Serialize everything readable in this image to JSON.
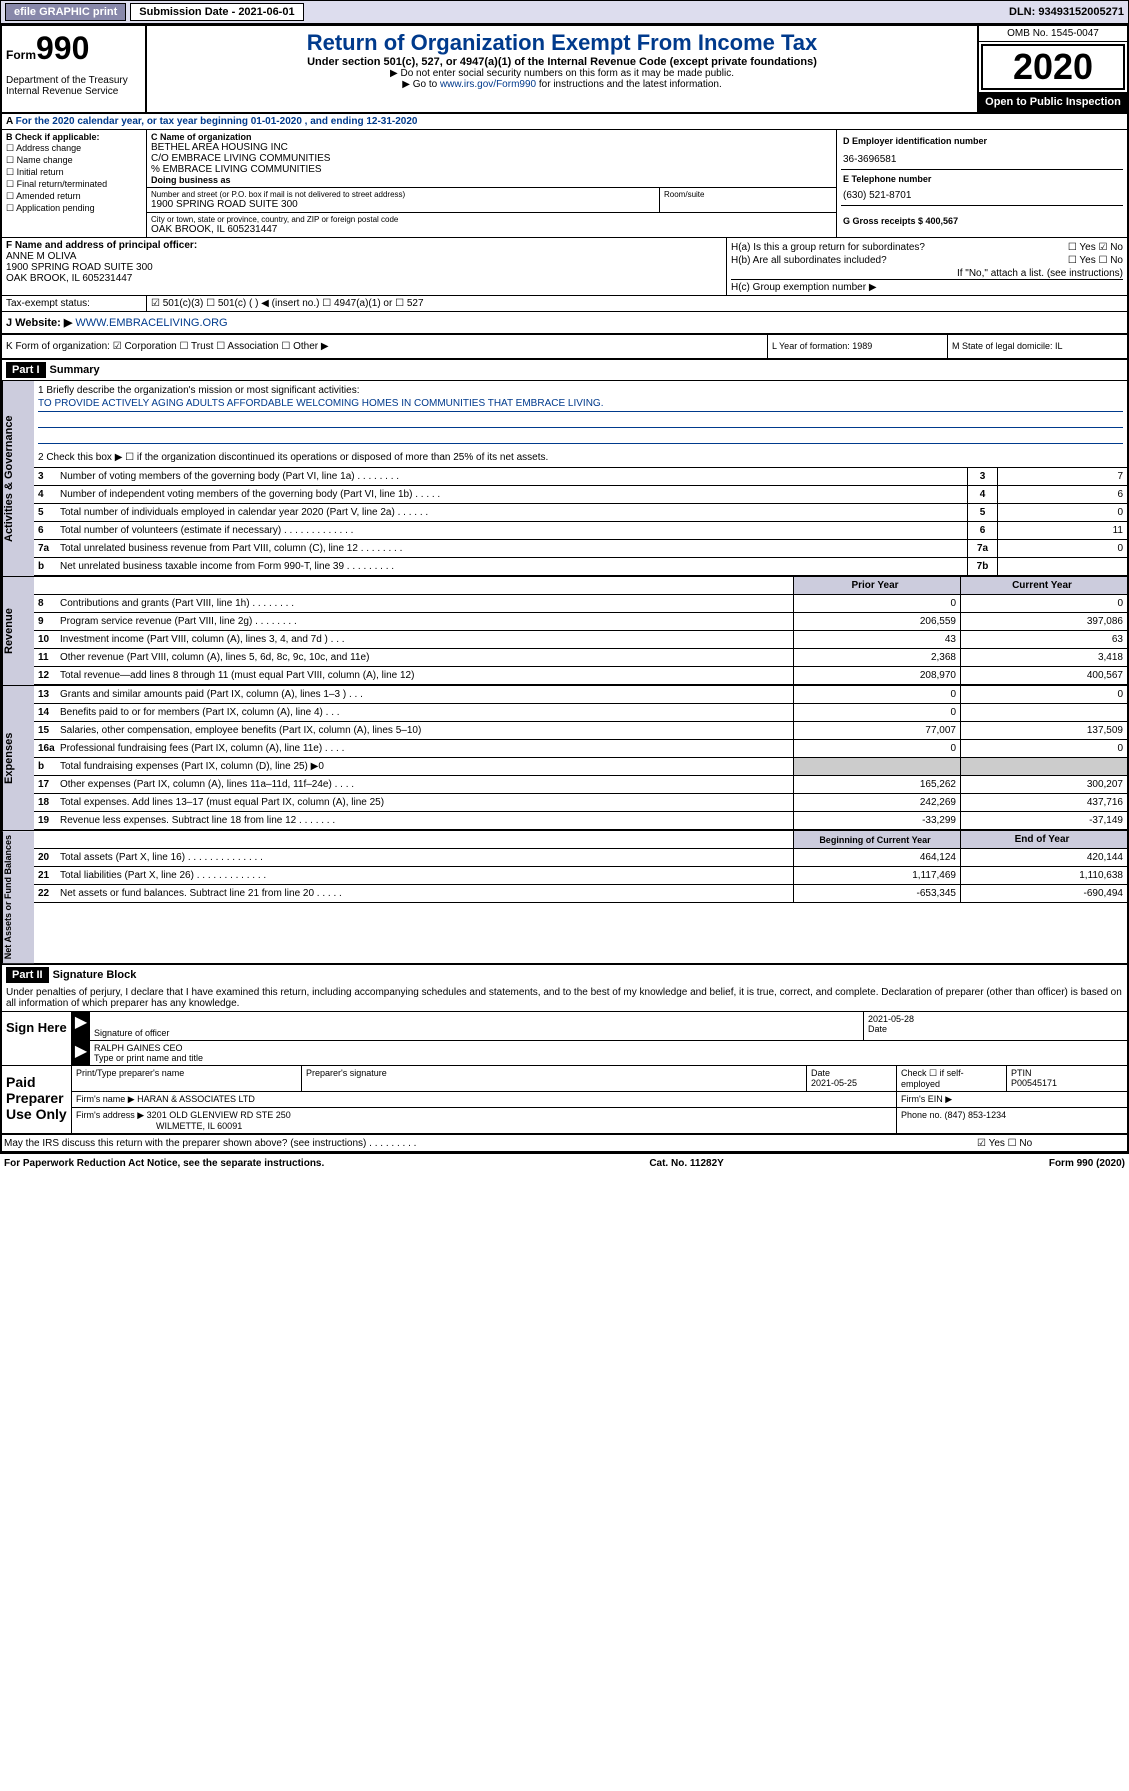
{
  "topbar": {
    "efile": "efile GRAPHIC print",
    "sub_label": "Submission Date - 2021-06-01",
    "dln": "DLN: 93493152005271"
  },
  "header": {
    "form_prefix": "Form",
    "form_num": "990",
    "dept": "Department of the Treasury\nInternal Revenue Service",
    "title": "Return of Organization Exempt From Income Tax",
    "subtitle": "Under section 501(c), 527, or 4947(a)(1) of the Internal Revenue Code (except private foundations)",
    "note1": "▶ Do not enter social security numbers on this form as it may be made public.",
    "note2_pre": "▶ Go to ",
    "note2_link": "www.irs.gov/Form990",
    "note2_post": " for instructions and the latest information.",
    "omb": "OMB No. 1545-0047",
    "year": "2020",
    "inspection": "Open to Public Inspection"
  },
  "row_a": {
    "text": "For the 2020 calendar year, or tax year beginning 01-01-2020   , and ending 12-31-2020"
  },
  "section_b": {
    "label": "B Check if applicable:",
    "options": [
      "☐ Address change",
      "☐ Name change",
      "☐ Initial return",
      "☐ Final return/terminated",
      "☐ Amended return",
      "☐ Application pending"
    ]
  },
  "section_c": {
    "name_label": "C Name of organization",
    "name1": "BETHEL AREA HOUSING INC",
    "name2": "C/O EMBRACE LIVING COMMUNITIES",
    "name3": "% EMBRACE LIVING COMMUNITIES",
    "dba_label": "Doing business as",
    "addr_label": "Number and street (or P.O. box if mail is not delivered to street address)",
    "addr": "1900 SPRING ROAD SUITE 300",
    "room_label": "Room/suite",
    "city_label": "City or town, state or province, country, and ZIP or foreign postal code",
    "city": "OAK BROOK, IL  605231447"
  },
  "section_d": {
    "ein_label": "D Employer identification number",
    "ein": "36-3696581",
    "phone_label": "E Telephone number",
    "phone": "(630) 521-8701",
    "gross_label": "G Gross receipts $ 400,567"
  },
  "section_f": {
    "label": "F  Name and address of principal officer:",
    "name": "ANNE M OLIVA",
    "addr1": "1900 SPRING ROAD SUITE 300",
    "addr2": "OAK BROOK, IL  605231447"
  },
  "section_h": {
    "ha_label": "H(a)  Is this a group return for subordinates?",
    "ha_val": "☐ Yes  ☑ No",
    "hb_label": "H(b)  Are all subordinates included?",
    "hb_val": "☐ Yes  ☐ No",
    "hb_note": "If \"No,\" attach a list. (see instructions)",
    "hc_label": "H(c)  Group exemption number ▶"
  },
  "row_i": {
    "label": "Tax-exempt status:",
    "opts": "☑ 501(c)(3)    ☐ 501(c) (  ) ◀ (insert no.)    ☐ 4947(a)(1) or  ☐ 527"
  },
  "row_j": {
    "label": "J   Website: ▶",
    "val": "WWW.EMBRACELIVING.ORG"
  },
  "row_k": {
    "label": "K Form of organization:  ☑ Corporation  ☐ Trust  ☐ Association  ☐ Other ▶",
    "l": "L Year of formation: 1989",
    "m": "M State of legal domicile: IL"
  },
  "part1": {
    "hdr": "Part I",
    "title": "Summary",
    "mission_label": "1   Briefly describe the organization's mission or most significant activities:",
    "mission": "TO PROVIDE ACTIVELY AGING ADULTS AFFORDABLE WELCOMING HOMES IN COMMUNITIES THAT EMBRACE LIVING.",
    "line2": "2    Check this box ▶ ☐  if the organization discontinued its operations or disposed of more than 25% of its net assets."
  },
  "governance": {
    "side": "Activities & Governance",
    "rows": [
      {
        "n": "3",
        "d": "Number of voting members of the governing body (Part VI, line 1a)  .  .  .  .  .  .  .  .",
        "b": "3",
        "v": "7"
      },
      {
        "n": "4",
        "d": "Number of independent voting members of the governing body (Part VI, line 1b)  .  .  .  .  .",
        "b": "4",
        "v": "6"
      },
      {
        "n": "5",
        "d": "Total number of individuals employed in calendar year 2020 (Part V, line 2a)  .  .  .  .  .  .",
        "b": "5",
        "v": "0"
      },
      {
        "n": "6",
        "d": "Total number of volunteers (estimate if necessary)  .  .  .  .  .  .  .  .  .  .  .  .  .",
        "b": "6",
        "v": "11"
      },
      {
        "n": "7a",
        "d": "Total unrelated business revenue from Part VIII, column (C), line 12   .  .  .  .  .  .  .  .",
        "b": "7a",
        "v": "0"
      },
      {
        "n": "b",
        "d": "Net unrelated business taxable income from Form 990-T, line 39  .  .  .  .  .  .  .  .  .",
        "b": "7b",
        "v": ""
      }
    ]
  },
  "revenue": {
    "side": "Revenue",
    "hdr_prior": "Prior Year",
    "hdr_curr": "Current Year",
    "rows": [
      {
        "n": "8",
        "d": "Contributions and grants (Part VIII, line 1h)  .  .  .  .  .  .  .  .",
        "p": "0",
        "c": "0"
      },
      {
        "n": "9",
        "d": "Program service revenue (Part VIII, line 2g)  .  .  .  .  .  .  .  .",
        "p": "206,559",
        "c": "397,086"
      },
      {
        "n": "10",
        "d": "Investment income (Part VIII, column (A), lines 3, 4, and 7d )  .  .  .",
        "p": "43",
        "c": "63"
      },
      {
        "n": "11",
        "d": "Other revenue (Part VIII, column (A), lines 5, 6d, 8c, 9c, 10c, and 11e)",
        "p": "2,368",
        "c": "3,418"
      },
      {
        "n": "12",
        "d": "Total revenue—add lines 8 through 11 (must equal Part VIII, column (A), line 12)",
        "p": "208,970",
        "c": "400,567"
      }
    ]
  },
  "expenses": {
    "side": "Expenses",
    "rows": [
      {
        "n": "13",
        "d": "Grants and similar amounts paid (Part IX, column (A), lines 1–3 )  .  .  .",
        "p": "0",
        "c": "0"
      },
      {
        "n": "14",
        "d": "Benefits paid to or for members (Part IX, column (A), line 4)  .  .  .",
        "p": "0",
        "c": ""
      },
      {
        "n": "15",
        "d": "Salaries, other compensation, employee benefits (Part IX, column (A), lines 5–10)",
        "p": "77,007",
        "c": "137,509"
      },
      {
        "n": "16a",
        "d": "Professional fundraising fees (Part IX, column (A), line 11e)  .  .  .  .",
        "p": "0",
        "c": "0"
      },
      {
        "n": "b",
        "d": "Total fundraising expenses (Part IX, column (D), line 25) ▶0",
        "p": "",
        "c": "",
        "grey": true
      },
      {
        "n": "17",
        "d": "Other expenses (Part IX, column (A), lines 11a–11d, 11f–24e)  .  .  .  .",
        "p": "165,262",
        "c": "300,207"
      },
      {
        "n": "18",
        "d": "Total expenses. Add lines 13–17 (must equal Part IX, column (A), line 25)",
        "p": "242,269",
        "c": "437,716"
      },
      {
        "n": "19",
        "d": "Revenue less expenses. Subtract line 18 from line 12  .  .  .  .  .  .  .",
        "p": "-33,299",
        "c": "-37,149"
      }
    ]
  },
  "balances": {
    "side": "Net Assets or Fund Balances",
    "hdr_begin": "Beginning of Current Year",
    "hdr_end": "End of Year",
    "rows": [
      {
        "n": "20",
        "d": "Total assets (Part X, line 16)  .  .  .  .  .  .  .  .  .  .  .  .  .  .",
        "p": "464,124",
        "c": "420,144"
      },
      {
        "n": "21",
        "d": "Total liabilities (Part X, line 26)  .  .  .  .  .  .  .  .  .  .  .  .  .",
        "p": "1,117,469",
        "c": "1,110,638"
      },
      {
        "n": "22",
        "d": "Net assets or fund balances. Subtract line 21 from line 20  .  .  .  .  .",
        "p": "-653,345",
        "c": "-690,494"
      }
    ]
  },
  "part2": {
    "hdr": "Part II",
    "title": "Signature Block",
    "disclaim": "Under penalties of perjury, I declare that I have examined this return, including accompanying schedules and statements, and to the best of my knowledge and belief, it is true, correct, and complete. Declaration of preparer (other than officer) is based on all information of which preparer has any knowledge."
  },
  "sign": {
    "left": "Sign Here",
    "sig_label": "Signature of officer",
    "date": "2021-05-28",
    "date_label": "Date",
    "name": "RALPH GAINES CEO",
    "name_label": "Type or print name and title"
  },
  "preparer": {
    "left": "Paid Preparer Use Only",
    "print_label": "Print/Type preparer's name",
    "sig_label": "Preparer's signature",
    "date_label": "Date",
    "date": "2021-05-25",
    "check_label": "Check ☐ if self-employed",
    "ptin_label": "PTIN",
    "ptin": "P00545171",
    "firm_name_label": "Firm's name    ▶",
    "firm_name": "HARAN & ASSOCIATES LTD",
    "firm_ein_label": "Firm's EIN ▶",
    "firm_addr_label": "Firm's address ▶",
    "firm_addr1": "3201 OLD GLENVIEW RD STE 250",
    "firm_addr2": "WILMETTE, IL  60091",
    "phone_label": "Phone no. (847) 853-1234"
  },
  "discuss": {
    "text": "May the IRS discuss this return with the preparer shown above? (see instructions)   .  .  .  .  .  .  .  .  .",
    "val": "☑ Yes   ☐ No"
  },
  "footer": {
    "left": "For Paperwork Reduction Act Notice, see the separate instructions.",
    "mid": "Cat. No. 11282Y",
    "right": "Form 990 (2020)"
  }
}
